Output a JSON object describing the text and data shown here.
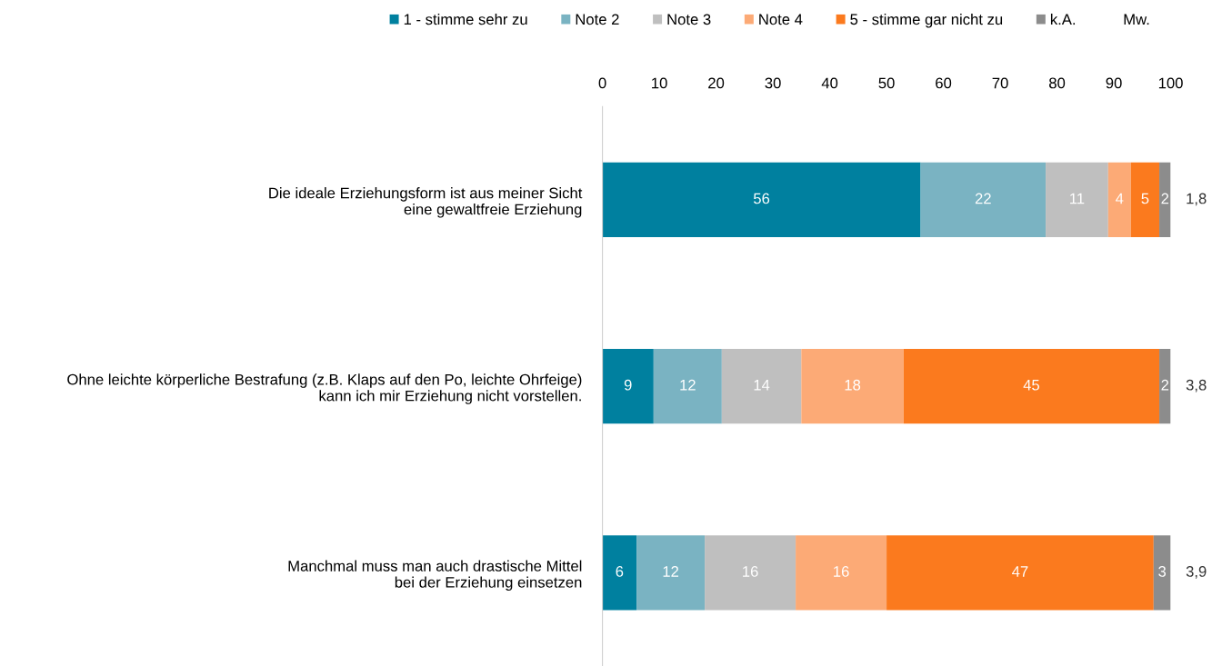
{
  "chart_data": {
    "type": "bar",
    "orientation": "horizontal",
    "stacked": true,
    "categories": [
      "Die ideale Erziehungsform ist aus meiner Sicht\neine gewaltfreie Erziehung",
      "Ohne leichte körperliche Bestrafung (z.B. Klaps auf den Po, leichte Ohrfeige)\nkann ich mir Erziehung nicht vorstellen.",
      "Manchmal muss man auch drastische Mittel\nbei der Erziehung einsetzen"
    ],
    "series": [
      {
        "name": "1 - stimme sehr zu",
        "color": "#00809f",
        "values": [
          56,
          9,
          6
        ]
      },
      {
        "name": "Note 2",
        "color": "#7ab3c2",
        "values": [
          22,
          12,
          12
        ]
      },
      {
        "name": "Note 3",
        "color": "#bfbfbf",
        "values": [
          11,
          14,
          16
        ]
      },
      {
        "name": "Note 4",
        "color": "#fcaa76",
        "values": [
          4,
          18,
          16
        ]
      },
      {
        "name": "5 - stimme gar nicht zu",
        "color": "#fb7a1e",
        "values": [
          5,
          45,
          47
        ]
      },
      {
        "name": "k.A.",
        "color": "#8c8c8c",
        "values": [
          2,
          2,
          3
        ]
      }
    ],
    "xlim": [
      0,
      100
    ],
    "xticks": [
      0,
      10,
      20,
      30,
      40,
      50,
      60,
      70,
      80,
      90,
      100
    ],
    "data_labels": true,
    "legend": "top",
    "grid": false,
    "annotations": [
      "Mw.",
      "1,8",
      "3,8",
      "3,9"
    ]
  }
}
